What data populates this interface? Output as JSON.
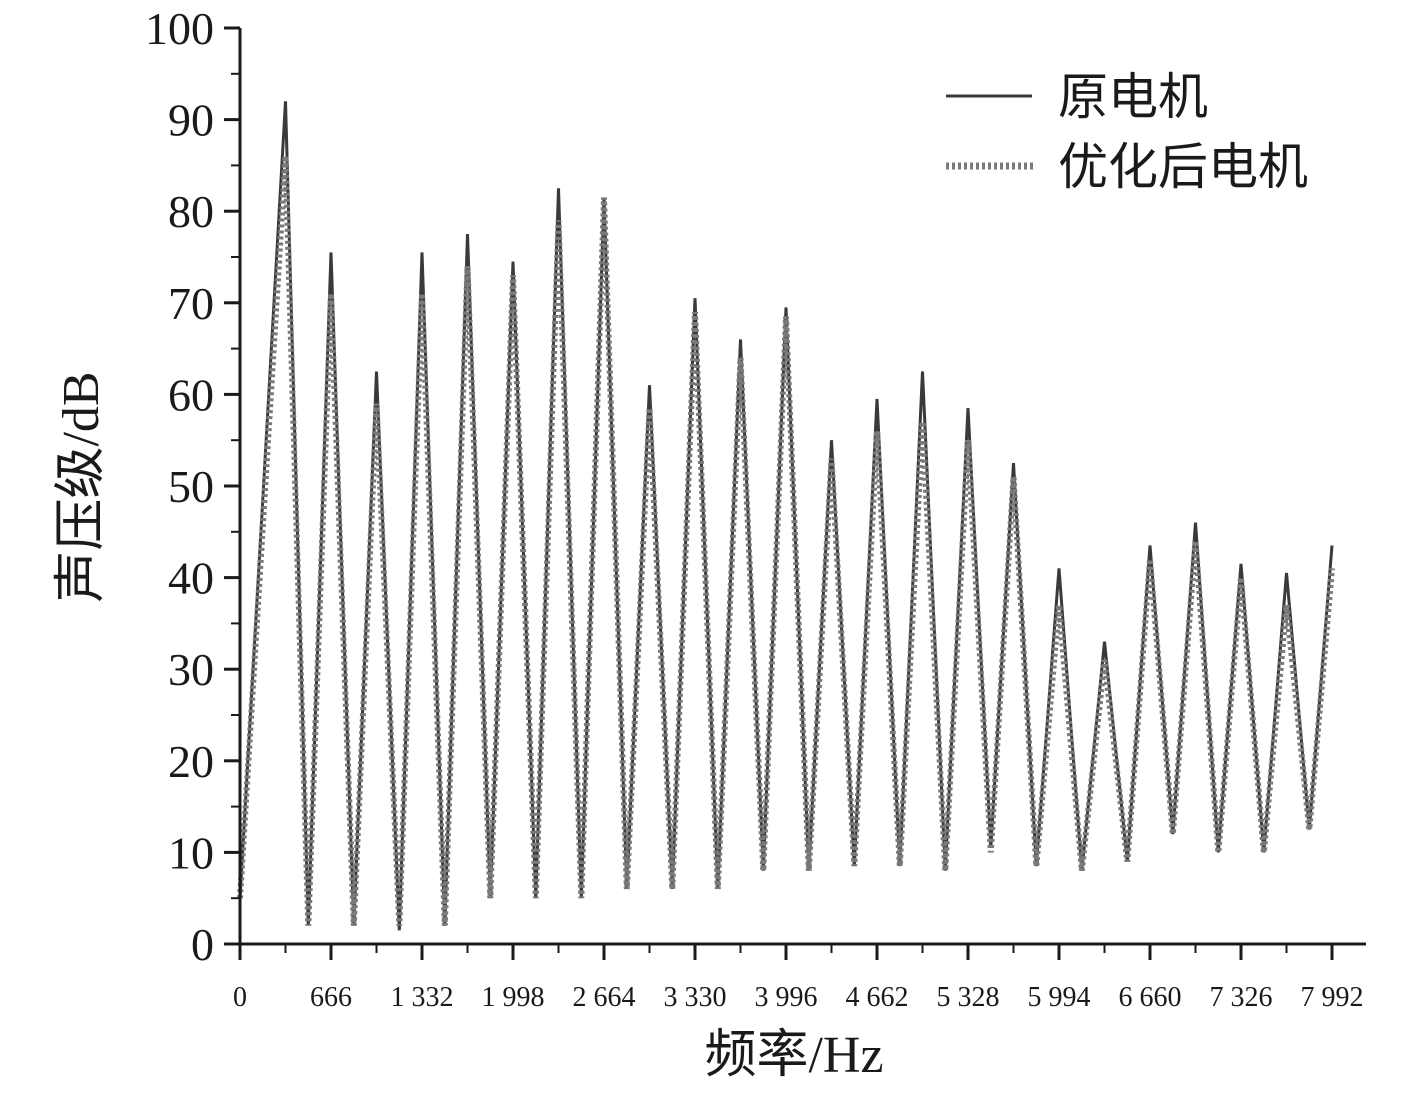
{
  "chart_data": {
    "type": "line",
    "title": "",
    "xlabel": "频率/Hz",
    "ylabel": "声压级/dB",
    "xlim": [
      0,
      7992
    ],
    "ylim": [
      0,
      100
    ],
    "x_ticks": [
      0,
      666,
      1332,
      1998,
      2664,
      3330,
      3996,
      4662,
      5328,
      5994,
      6660,
      7326,
      7992
    ],
    "x_tick_labels": [
      "0",
      "666",
      "1 332",
      "1 998",
      "2 664",
      "3 330",
      "3 996",
      "4 662",
      "5 328",
      "5 994",
      "6 660",
      "7 326",
      "7 992"
    ],
    "y_ticks": [
      0,
      10,
      20,
      30,
      40,
      50,
      60,
      70,
      80,
      90,
      100
    ],
    "y_tick_labels": [
      "0",
      "10",
      "20",
      "30",
      "40",
      "50",
      "60",
      "70",
      "80",
      "90",
      "100"
    ],
    "grid": false,
    "legend_position": "top-right",
    "series": [
      {
        "name": "原电机",
        "style": "solid",
        "color": "#3a3a3a",
        "x": [
          0,
          333,
          500,
          666,
          833,
          999,
          1166,
          1332,
          1499,
          1665,
          1832,
          1998,
          2165,
          2331,
          2498,
          2664,
          2831,
          2997,
          3164,
          3330,
          3497,
          3663,
          3830,
          3996,
          4163,
          4329,
          4496,
          4662,
          4829,
          4995,
          5162,
          5328,
          5495,
          5661,
          5828,
          5994,
          6161,
          6327,
          6494,
          6660,
          6827,
          6993,
          7160,
          7326,
          7493,
          7659,
          7826,
          7992
        ],
        "y": [
          5,
          92,
          2,
          75.5,
          2,
          62.5,
          1.5,
          75.5,
          2,
          77.5,
          5,
          74.5,
          5,
          82.5,
          5,
          81.5,
          6,
          61,
          6,
          70.5,
          6,
          66,
          8,
          69.5,
          8,
          55,
          8.5,
          59.5,
          8.5,
          62.5,
          8,
          58.5,
          10.5,
          52.5,
          8.5,
          41,
          8,
          33,
          9,
          43.5,
          12,
          46,
          10,
          41.5,
          10,
          40.5,
          12.5,
          43.5
        ]
      },
      {
        "name": "优化后电机",
        "style": "dotted",
        "color": "#7a7a7a",
        "x": [
          0,
          333,
          500,
          666,
          833,
          999,
          1166,
          1332,
          1499,
          1665,
          1832,
          1998,
          2165,
          2331,
          2498,
          2664,
          2831,
          2997,
          3164,
          3330,
          3497,
          3663,
          3830,
          3996,
          4163,
          4329,
          4496,
          4662,
          4829,
          4995,
          5162,
          5328,
          5495,
          5661,
          5828,
          5994,
          6161,
          6327,
          6494,
          6660,
          6827,
          6993,
          7160,
          7326,
          7493,
          7659,
          7826,
          7992
        ],
        "y": [
          5,
          86,
          2,
          71,
          2,
          59,
          2,
          71,
          2,
          74,
          5,
          73,
          5,
          79,
          5,
          81.5,
          6,
          58.5,
          6,
          69,
          6,
          64,
          8,
          68.5,
          8,
          53,
          8.5,
          56,
          8.5,
          57,
          8,
          55,
          10,
          51,
          8.5,
          37,
          8,
          31,
          9,
          42,
          12,
          44,
          10,
          40,
          10,
          37,
          12.5,
          41
        ]
      }
    ]
  },
  "legend": {
    "items": [
      {
        "label": "原电机"
      },
      {
        "label": "优化后电机"
      }
    ]
  }
}
